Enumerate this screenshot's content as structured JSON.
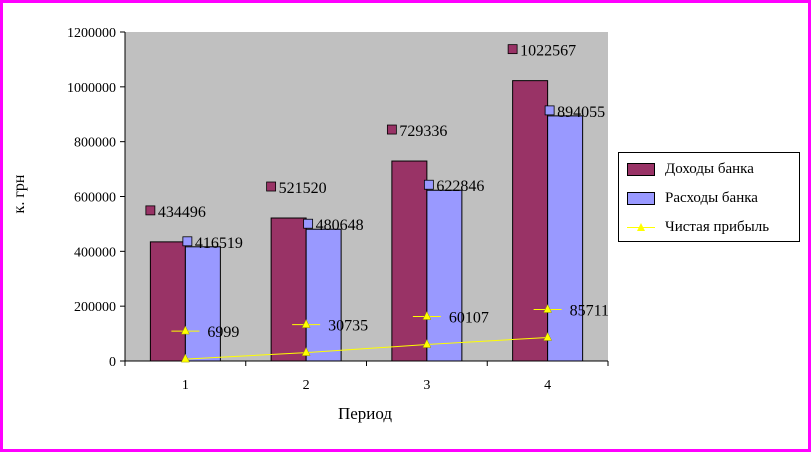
{
  "chart_data": {
    "type": "bar",
    "categories": [
      "1",
      "2",
      "3",
      "4"
    ],
    "ylim": [
      0,
      1200000
    ],
    "yticks": [
      "0",
      "200000",
      "400000",
      "600000",
      "800000",
      "1000000",
      "1200000"
    ],
    "xlabel": "Период",
    "ylabel": "к. грн",
    "legend_position": "right",
    "series": [
      {
        "name": "Доходы банка",
        "kind": "bar",
        "color": "#993366",
        "values": [
          434496,
          521520,
          729336,
          1022567
        ],
        "labels": [
          "434496",
          "521520",
          "729336",
          "1022567"
        ]
      },
      {
        "name": "Расходы банка",
        "kind": "bar",
        "color": "#9999ff",
        "values": [
          416519,
          480648,
          622846,
          894055
        ],
        "labels": [
          "416519",
          "480648",
          "622846",
          "894055"
        ]
      },
      {
        "name": "Чистая прибыль",
        "kind": "line",
        "color": "#ffff00",
        "values": [
          6999,
          30735,
          60107,
          85711
        ],
        "labels": [
          "6999",
          "30735",
          "60107",
          "85711"
        ]
      }
    ],
    "plot_background": "#c0c0c0",
    "frame_color": "#ff00ff"
  }
}
